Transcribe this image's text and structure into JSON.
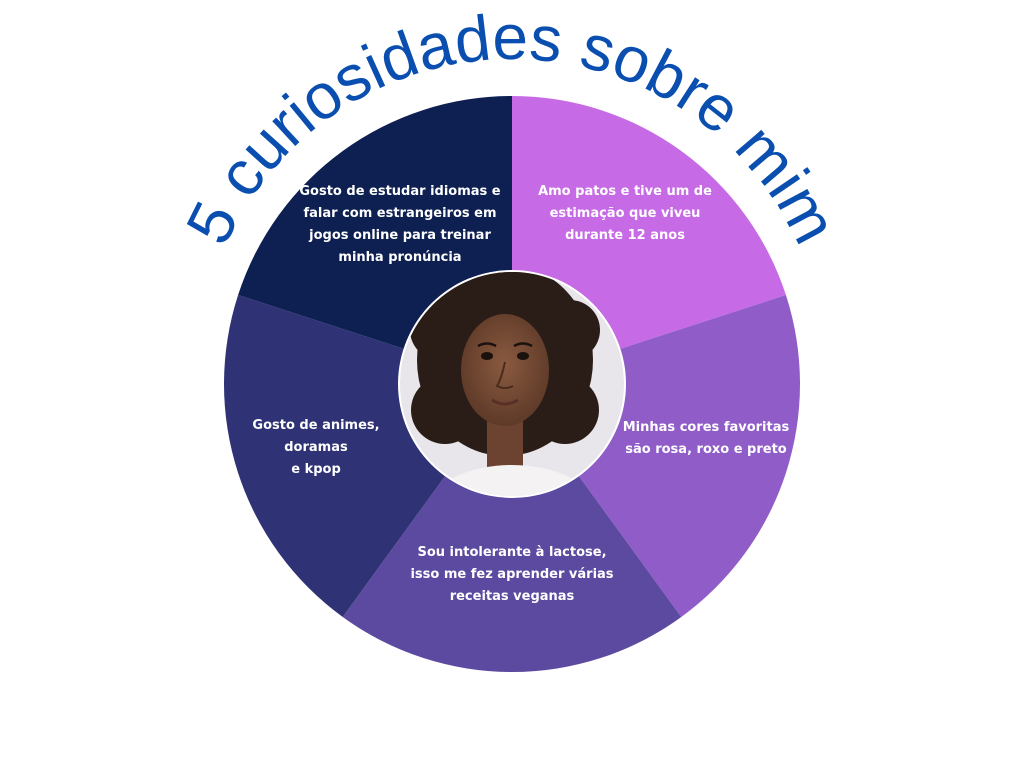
{
  "title": "5 curiosidades sobre mim",
  "colors": {
    "title": "#0a4fb0",
    "background": "#ffffff",
    "text": "#ffffff"
  },
  "segments": [
    {
      "name": "segment-duck",
      "color": "#c76ae5",
      "lines": [
        "Amo patos e tive um de",
        "estimação que viveu",
        "durante 12 anos"
      ]
    },
    {
      "name": "segment-colors",
      "color": "#8f5cc8",
      "lines": [
        "Minhas cores favoritas",
        "são rosa, roxo e preto"
      ]
    },
    {
      "name": "segment-lactose",
      "color": "#5c4aa1",
      "lines": [
        "Sou intolerante à lactose,",
        "isso me fez aprender várias",
        "receitas veganas"
      ]
    },
    {
      "name": "segment-animes",
      "color": "#2f3274",
      "lines": [
        "Gosto de animes,",
        "doramas",
        "e kpop"
      ]
    },
    {
      "name": "segment-languages",
      "color": "#0e1f52",
      "lines": [
        "Gosto de estudar idiomas e",
        "falar com estrangeiros em",
        "jogos online para treinar",
        "minha pronúncia"
      ]
    }
  ],
  "photo": {
    "icon": "portrait-photo",
    "background": "#e8e6ea"
  }
}
